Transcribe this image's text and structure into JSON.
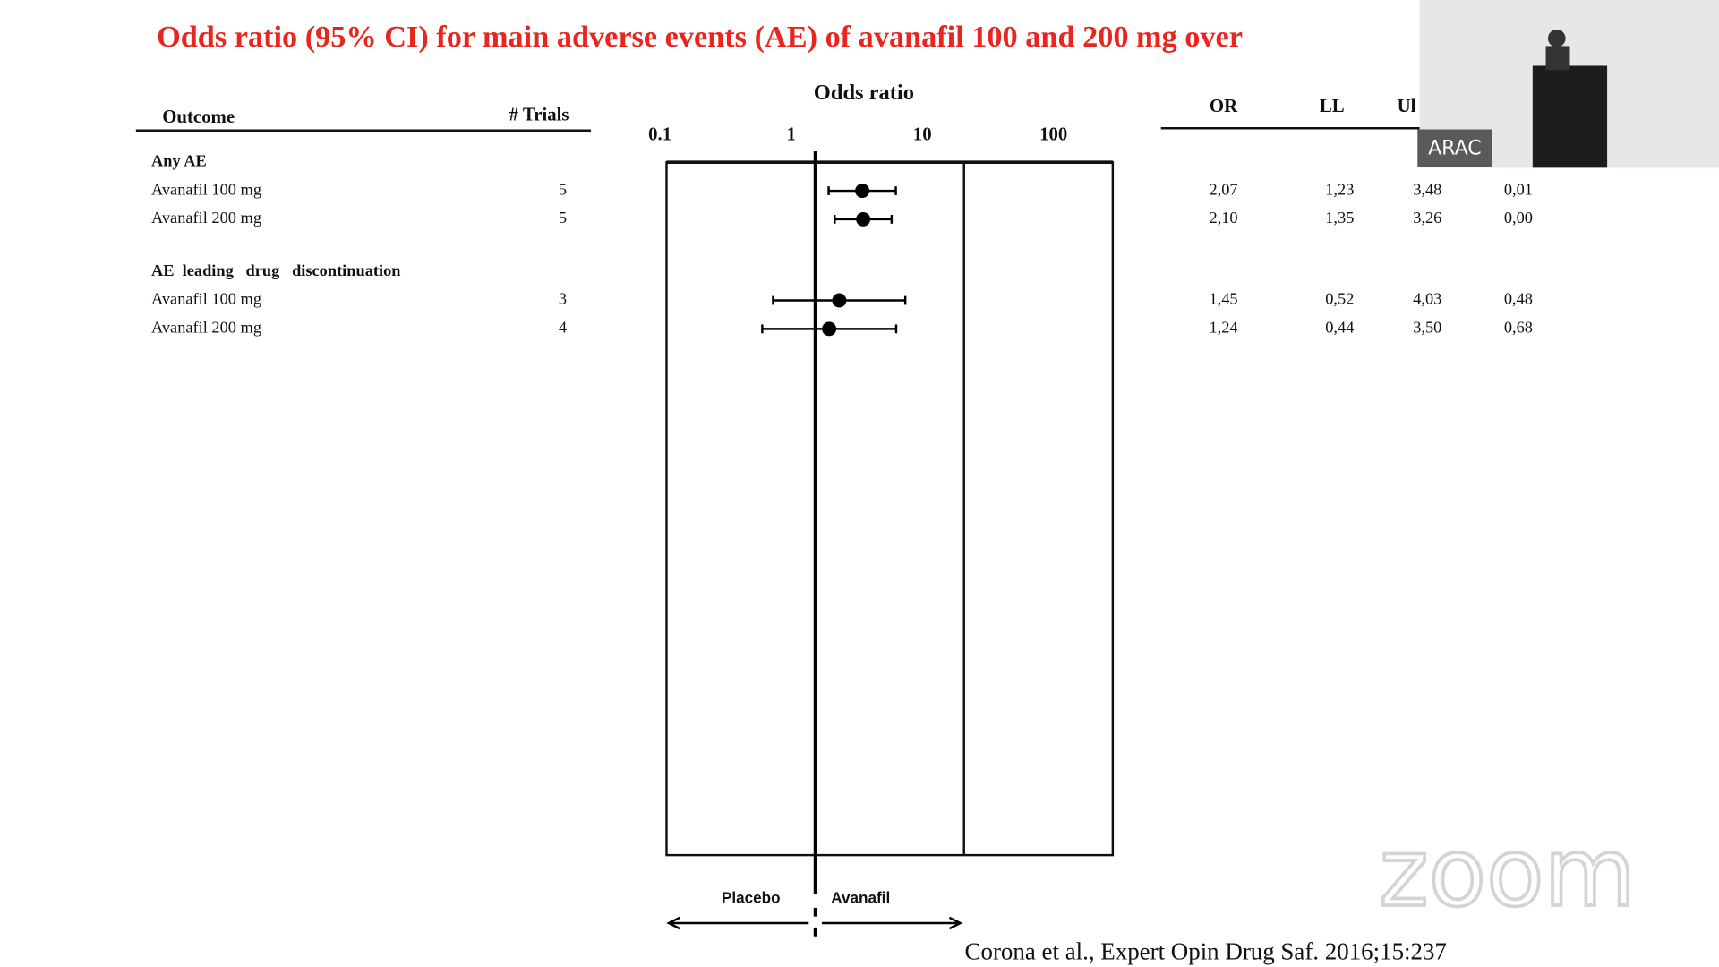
{
  "slide_title": "Odds ratio (95% CI) for main adverse events (AE) of avanafil 100 and 200 mg over",
  "citation": "Corona et al., Expert Opin Drug Saf. 2016;15:237",
  "video_overlay_label": "ARAC",
  "watermark": "zoom",
  "chart_data": {
    "type": "forest",
    "title": "Odds ratio",
    "columns": {
      "outcome": "Outcome",
      "trials": "# Trials",
      "stats": [
        "OR",
        "LL",
        "Ul"
      ]
    },
    "xscale": "log",
    "xlim": [
      0.1,
      100
    ],
    "xticks": [
      0.1,
      1,
      10,
      100
    ],
    "reference": 1,
    "left_label": "Placebo",
    "right_label": "Avanafil",
    "color": "#000000",
    "groups": [
      {
        "name": "Any AE",
        "rows": [
          {
            "label": "Avanafil 100 mg",
            "trials": 5,
            "values": [
              2.07,
              1.23,
              3.48,
              0.01
            ],
            "value_labels": [
              "2,07",
              "1,23",
              "3,48",
              "0,01"
            ]
          },
          {
            "label": "Avanafil 200 mg",
            "trials": 5,
            "values": [
              2.1,
              1.35,
              3.26,
              0.0
            ],
            "value_labels": [
              "2,10",
              "1,35",
              "3,26",
              "0,00"
            ]
          }
        ]
      },
      {
        "name": "AE  leading   drug   discontinuation",
        "rows": [
          {
            "label": "Avanafil 100 mg",
            "trials": 3,
            "values": [
              1.45,
              0.52,
              4.03,
              0.48
            ],
            "value_labels": [
              "1,45",
              "0,52",
              "4,03",
              "0,48"
            ]
          },
          {
            "label": "Avanafil 200 mg",
            "trials": 4,
            "values": [
              1.24,
              0.44,
              3.5,
              0.68
            ],
            "value_labels": [
              "1,24",
              "0,44",
              "3,50",
              "0,68"
            ]
          }
        ]
      }
    ]
  }
}
